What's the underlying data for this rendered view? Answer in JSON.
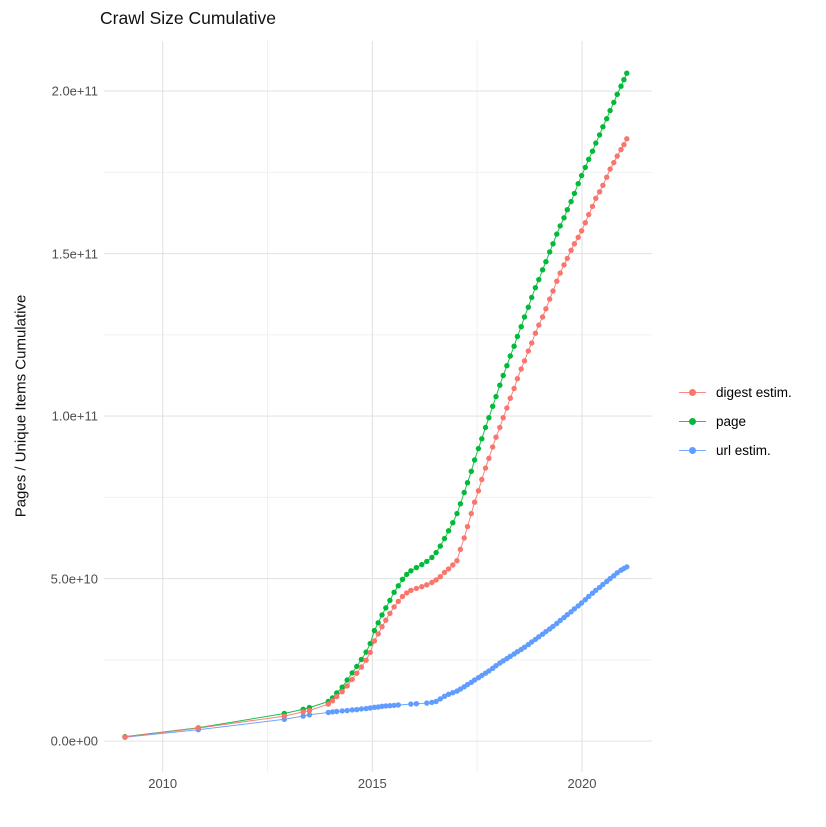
{
  "chart_data": {
    "type": "scatter",
    "title": "Crawl Size Cumulative",
    "xlabel": "",
    "ylabel": "Pages / Unique Items Cumulative",
    "values_unit": "1e9 (points stored as [year, billions])",
    "grid": true,
    "legend_position": "right",
    "xlim": [
      2008.6,
      2021.67
    ],
    "ylim": [
      -9.5,
      215.4
    ],
    "x_ticks": [
      {
        "label": "2010",
        "value": 2010
      },
      {
        "label": "2015",
        "value": 2015
      },
      {
        "label": "2020",
        "value": 2020
      }
    ],
    "x_minor": [
      2012.5,
      2017.5
    ],
    "y_ticks": [
      {
        "label": "0.0e+00",
        "value": 0
      },
      {
        "label": "5.0e+10",
        "value": 50
      },
      {
        "label": "1.0e+11",
        "value": 100
      },
      {
        "label": "1.5e+11",
        "value": 150
      },
      {
        "label": "2.0e+11",
        "value": 200
      }
    ],
    "y_minor": [
      25,
      75,
      125,
      175
    ],
    "series": [
      {
        "name": "digest estim.",
        "color": "#F8766D",
        "points": [
          [
            2009.1,
            1.3
          ],
          [
            2010.85,
            4.0
          ],
          [
            2012.9,
            7.7
          ],
          [
            2013.35,
            9.0
          ],
          [
            2013.5,
            9.4
          ],
          [
            2013.95,
            11.4
          ],
          [
            2014.05,
            12.4
          ],
          [
            2014.15,
            13.7
          ],
          [
            2014.28,
            15.2
          ],
          [
            2014.4,
            17.0
          ],
          [
            2014.52,
            19.0
          ],
          [
            2014.63,
            20.9
          ],
          [
            2014.74,
            22.8
          ],
          [
            2014.85,
            24.9
          ],
          [
            2014.95,
            27.3
          ],
          [
            2015.05,
            30.8
          ],
          [
            2015.14,
            33.0
          ],
          [
            2015.23,
            35.2
          ],
          [
            2015.32,
            37.2
          ],
          [
            2015.42,
            39.3
          ],
          [
            2015.52,
            41.3
          ],
          [
            2015.62,
            43.0
          ],
          [
            2015.72,
            44.5
          ],
          [
            2015.82,
            45.6
          ],
          [
            2015.92,
            46.4
          ],
          [
            2016.05,
            47.0
          ],
          [
            2016.18,
            47.5
          ],
          [
            2016.3,
            48.1
          ],
          [
            2016.42,
            48.8
          ],
          [
            2016.52,
            49.6
          ],
          [
            2016.62,
            50.6
          ],
          [
            2016.72,
            51.9
          ],
          [
            2016.82,
            53.0
          ],
          [
            2016.92,
            54.2
          ],
          [
            2017.02,
            55.5
          ],
          [
            2017.1,
            59.0
          ],
          [
            2017.19,
            62.5
          ],
          [
            2017.27,
            66.0
          ],
          [
            2017.36,
            70.0
          ],
          [
            2017.44,
            73.5
          ],
          [
            2017.53,
            77.0
          ],
          [
            2017.61,
            80.5
          ],
          [
            2017.7,
            84.0
          ],
          [
            2017.78,
            87.0
          ],
          [
            2017.87,
            90.5
          ],
          [
            2017.95,
            93.5
          ],
          [
            2018.04,
            96.5
          ],
          [
            2018.12,
            99.5
          ],
          [
            2018.21,
            102.5
          ],
          [
            2018.29,
            105.5
          ],
          [
            2018.38,
            108.5
          ],
          [
            2018.46,
            111.5
          ],
          [
            2018.55,
            114.5
          ],
          [
            2018.63,
            117.0
          ],
          [
            2018.72,
            120.0
          ],
          [
            2018.8,
            122.5
          ],
          [
            2018.89,
            125.5
          ],
          [
            2018.97,
            128.0
          ],
          [
            2019.06,
            130.5
          ],
          [
            2019.14,
            133.0
          ],
          [
            2019.23,
            136.0
          ],
          [
            2019.31,
            138.5
          ],
          [
            2019.4,
            141.5
          ],
          [
            2019.48,
            144.0
          ],
          [
            2019.57,
            146.5
          ],
          [
            2019.65,
            148.5
          ],
          [
            2019.74,
            151.0
          ],
          [
            2019.82,
            153.0
          ],
          [
            2019.91,
            155.0
          ],
          [
            2019.99,
            157.0
          ],
          [
            2020.08,
            159.5
          ],
          [
            2020.16,
            162.0
          ],
          [
            2020.25,
            164.5
          ],
          [
            2020.33,
            167.0
          ],
          [
            2020.42,
            169.0
          ],
          [
            2020.5,
            171.0
          ],
          [
            2020.59,
            173.5
          ],
          [
            2020.67,
            176.0
          ],
          [
            2020.76,
            178.0
          ],
          [
            2020.84,
            180.0
          ],
          [
            2020.93,
            182.0
          ],
          [
            2021.0,
            183.5
          ],
          [
            2021.07,
            185.3
          ]
        ]
      },
      {
        "name": "page",
        "color": "#00BA38",
        "points": [
          [
            2009.1,
            1.4
          ],
          [
            2010.85,
            4.1
          ],
          [
            2012.9,
            8.5
          ],
          [
            2013.35,
            9.8
          ],
          [
            2013.5,
            10.3
          ],
          [
            2013.95,
            12.2
          ],
          [
            2014.05,
            13.3
          ],
          [
            2014.15,
            14.8
          ],
          [
            2014.28,
            16.6
          ],
          [
            2014.4,
            18.8
          ],
          [
            2014.52,
            21.0
          ],
          [
            2014.63,
            23.0
          ],
          [
            2014.74,
            25.1
          ],
          [
            2014.85,
            27.4
          ],
          [
            2014.95,
            30.0
          ],
          [
            2015.05,
            34.0
          ],
          [
            2015.14,
            36.4
          ],
          [
            2015.23,
            38.8
          ],
          [
            2015.32,
            41.0
          ],
          [
            2015.42,
            43.3
          ],
          [
            2015.52,
            45.8
          ],
          [
            2015.62,
            47.8
          ],
          [
            2015.72,
            49.8
          ],
          [
            2015.82,
            51.3
          ],
          [
            2015.92,
            52.4
          ],
          [
            2016.05,
            53.4
          ],
          [
            2016.18,
            54.3
          ],
          [
            2016.3,
            55.3
          ],
          [
            2016.42,
            56.5
          ],
          [
            2016.52,
            58.0
          ],
          [
            2016.62,
            60.0
          ],
          [
            2016.72,
            62.3
          ],
          [
            2016.82,
            64.7
          ],
          [
            2016.92,
            67.2
          ],
          [
            2017.02,
            70.0
          ],
          [
            2017.1,
            73.0
          ],
          [
            2017.19,
            76.5
          ],
          [
            2017.27,
            79.5
          ],
          [
            2017.36,
            83.0
          ],
          [
            2017.44,
            86.5
          ],
          [
            2017.53,
            90.0
          ],
          [
            2017.61,
            93.0
          ],
          [
            2017.7,
            96.5
          ],
          [
            2017.78,
            99.5
          ],
          [
            2017.87,
            103.0
          ],
          [
            2017.95,
            106.0
          ],
          [
            2018.04,
            109.5
          ],
          [
            2018.12,
            112.5
          ],
          [
            2018.21,
            115.5
          ],
          [
            2018.29,
            118.5
          ],
          [
            2018.38,
            121.5
          ],
          [
            2018.46,
            124.5
          ],
          [
            2018.55,
            127.5
          ],
          [
            2018.63,
            130.5
          ],
          [
            2018.72,
            133.5
          ],
          [
            2018.8,
            136.5
          ],
          [
            2018.89,
            139.5
          ],
          [
            2018.97,
            142.0
          ],
          [
            2019.06,
            145.0
          ],
          [
            2019.14,
            147.5
          ],
          [
            2019.23,
            150.5
          ],
          [
            2019.31,
            153.0
          ],
          [
            2019.4,
            156.0
          ],
          [
            2019.48,
            158.5
          ],
          [
            2019.57,
            161.0
          ],
          [
            2019.65,
            163.5
          ],
          [
            2019.74,
            166.0
          ],
          [
            2019.82,
            168.5
          ],
          [
            2019.91,
            171.5
          ],
          [
            2019.99,
            174.0
          ],
          [
            2020.08,
            176.5
          ],
          [
            2020.16,
            179.0
          ],
          [
            2020.25,
            181.5
          ],
          [
            2020.33,
            184.0
          ],
          [
            2020.42,
            186.5
          ],
          [
            2020.5,
            189.0
          ],
          [
            2020.59,
            191.5
          ],
          [
            2020.67,
            194.0
          ],
          [
            2020.76,
            196.5
          ],
          [
            2020.84,
            199.0
          ],
          [
            2020.93,
            201.5
          ],
          [
            2021.0,
            203.5
          ],
          [
            2021.07,
            205.5
          ]
        ]
      },
      {
        "name": "url estim.",
        "color": "#619CFF",
        "points": [
          [
            2009.1,
            1.2
          ],
          [
            2010.85,
            3.5
          ],
          [
            2012.9,
            6.7
          ],
          [
            2013.35,
            7.7
          ],
          [
            2013.5,
            8.1
          ],
          [
            2013.95,
            8.8
          ],
          [
            2014.05,
            9.0
          ],
          [
            2014.15,
            9.1
          ],
          [
            2014.28,
            9.3
          ],
          [
            2014.4,
            9.4
          ],
          [
            2014.52,
            9.6
          ],
          [
            2014.63,
            9.7
          ],
          [
            2014.74,
            9.9
          ],
          [
            2014.85,
            10.0
          ],
          [
            2014.95,
            10.2
          ],
          [
            2015.05,
            10.4
          ],
          [
            2015.14,
            10.5
          ],
          [
            2015.23,
            10.7
          ],
          [
            2015.32,
            10.8
          ],
          [
            2015.42,
            10.9
          ],
          [
            2015.52,
            11.0
          ],
          [
            2015.62,
            11.1
          ],
          [
            2015.92,
            11.4
          ],
          [
            2016.05,
            11.5
          ],
          [
            2016.3,
            11.7
          ],
          [
            2016.42,
            11.9
          ],
          [
            2016.52,
            12.2
          ],
          [
            2016.62,
            13.0
          ],
          [
            2016.72,
            13.8
          ],
          [
            2016.82,
            14.4
          ],
          [
            2016.92,
            14.9
          ],
          [
            2017.02,
            15.4
          ],
          [
            2017.1,
            16.0
          ],
          [
            2017.19,
            16.7
          ],
          [
            2017.27,
            17.4
          ],
          [
            2017.36,
            18.1
          ],
          [
            2017.44,
            18.8
          ],
          [
            2017.53,
            19.5
          ],
          [
            2017.61,
            20.2
          ],
          [
            2017.7,
            20.9
          ],
          [
            2017.78,
            21.6
          ],
          [
            2017.87,
            22.4
          ],
          [
            2017.95,
            23.2
          ],
          [
            2018.04,
            24.0
          ],
          [
            2018.12,
            24.7
          ],
          [
            2018.21,
            25.4
          ],
          [
            2018.29,
            26.1
          ],
          [
            2018.38,
            26.8
          ],
          [
            2018.46,
            27.5
          ],
          [
            2018.55,
            28.2
          ],
          [
            2018.63,
            28.9
          ],
          [
            2018.72,
            29.7
          ],
          [
            2018.8,
            30.5
          ],
          [
            2018.89,
            31.3
          ],
          [
            2018.97,
            32.1
          ],
          [
            2019.06,
            32.9
          ],
          [
            2019.14,
            33.7
          ],
          [
            2019.23,
            34.5
          ],
          [
            2019.31,
            35.3
          ],
          [
            2019.4,
            36.2
          ],
          [
            2019.48,
            37.1
          ],
          [
            2019.57,
            38.0
          ],
          [
            2019.65,
            38.9
          ],
          [
            2019.74,
            39.8
          ],
          [
            2019.82,
            40.7
          ],
          [
            2019.91,
            41.6
          ],
          [
            2019.99,
            42.5
          ],
          [
            2020.08,
            43.5
          ],
          [
            2020.16,
            44.5
          ],
          [
            2020.25,
            45.5
          ],
          [
            2020.33,
            46.4
          ],
          [
            2020.42,
            47.3
          ],
          [
            2020.5,
            48.2
          ],
          [
            2020.59,
            49.1
          ],
          [
            2020.67,
            50.0
          ],
          [
            2020.76,
            50.9
          ],
          [
            2020.84,
            51.8
          ],
          [
            2020.93,
            52.6
          ],
          [
            2021.0,
            53.1
          ],
          [
            2021.07,
            53.6
          ]
        ]
      }
    ]
  }
}
